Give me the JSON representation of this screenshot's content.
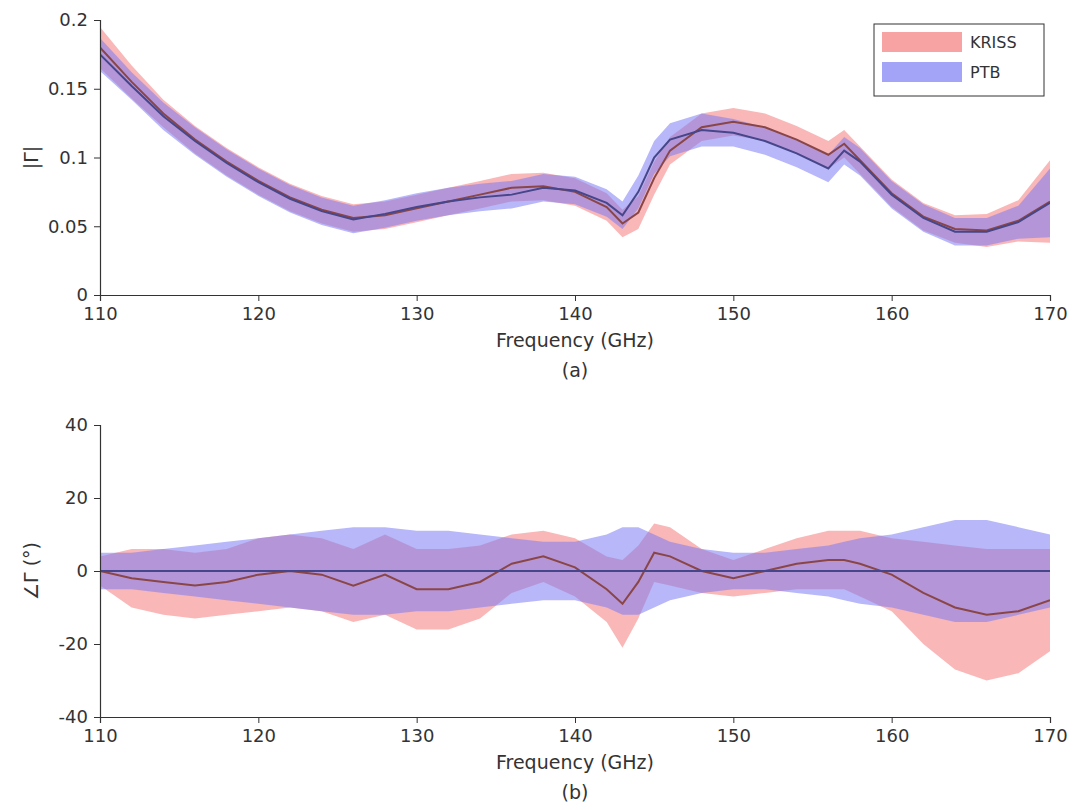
{
  "chart_data": [
    {
      "type": "line",
      "title": "(a)",
      "x_label": "Frequency (GHz)",
      "y_label": "|Γ|",
      "x": [
        110,
        112,
        114,
        116,
        118,
        120,
        122,
        124,
        126,
        128,
        130,
        132,
        134,
        136,
        138,
        140,
        142,
        143,
        144,
        145,
        146,
        148,
        150,
        152,
        154,
        156,
        157,
        158,
        160,
        162,
        164,
        166,
        168,
        170
      ],
      "xlim": [
        110,
        170
      ],
      "xticks": [
        110,
        120,
        130,
        140,
        150,
        160,
        170
      ],
      "ylim": [
        0,
        0.2
      ],
      "yticks": [
        0,
        0.05,
        0.1,
        0.15,
        0.2
      ],
      "legend": "upper right",
      "series": [
        {
          "name": "KRISS",
          "color": "#f47c7c",
          "values": [
            0.18,
            0.155,
            0.132,
            0.113,
            0.097,
            0.083,
            0.071,
            0.062,
            0.056,
            0.058,
            0.063,
            0.068,
            0.073,
            0.078,
            0.079,
            0.075,
            0.064,
            0.052,
            0.06,
            0.085,
            0.105,
            0.122,
            0.126,
            0.122,
            0.113,
            0.102,
            0.11,
            0.098,
            0.074,
            0.057,
            0.048,
            0.047,
            0.054,
            0.068
          ],
          "error": [
            0.015,
            0.012,
            0.01,
            0.01,
            0.01,
            0.01,
            0.01,
            0.01,
            0.01,
            0.01,
            0.01,
            0.01,
            0.01,
            0.01,
            0.01,
            0.01,
            0.01,
            0.01,
            0.012,
            0.012,
            0.01,
            0.01,
            0.01,
            0.01,
            0.01,
            0.01,
            0.01,
            0.01,
            0.01,
            0.01,
            0.01,
            0.012,
            0.015,
            0.03
          ]
        },
        {
          "name": "PTB",
          "color": "#7c7cf4",
          "values": [
            0.175,
            0.152,
            0.13,
            0.112,
            0.096,
            0.082,
            0.07,
            0.061,
            0.055,
            0.059,
            0.064,
            0.068,
            0.071,
            0.073,
            0.078,
            0.076,
            0.067,
            0.058,
            0.075,
            0.1,
            0.113,
            0.12,
            0.118,
            0.112,
            0.103,
            0.092,
            0.105,
            0.097,
            0.073,
            0.056,
            0.046,
            0.046,
            0.053,
            0.067
          ],
          "error": [
            0.012,
            0.01,
            0.01,
            0.01,
            0.01,
            0.01,
            0.01,
            0.01,
            0.01,
            0.01,
            0.01,
            0.01,
            0.01,
            0.01,
            0.01,
            0.01,
            0.01,
            0.01,
            0.012,
            0.012,
            0.012,
            0.012,
            0.01,
            0.01,
            0.01,
            0.01,
            0.01,
            0.01,
            0.01,
            0.01,
            0.01,
            0.01,
            0.012,
            0.025
          ]
        }
      ]
    },
    {
      "type": "line",
      "title": "(b)",
      "x_label": "Frequency (GHz)",
      "y_label": "∠Γ (°)",
      "x": [
        110,
        112,
        114,
        116,
        118,
        120,
        122,
        124,
        126,
        128,
        130,
        132,
        134,
        136,
        138,
        140,
        142,
        143,
        144,
        145,
        146,
        148,
        150,
        152,
        154,
        156,
        157,
        158,
        160,
        162,
        164,
        166,
        168,
        170
      ],
      "xlim": [
        110,
        170
      ],
      "xticks": [
        110,
        120,
        130,
        140,
        150,
        160,
        170
      ],
      "ylim": [
        -40,
        40
      ],
      "yticks": [
        -40,
        -20,
        0,
        20,
        40
      ],
      "series": [
        {
          "color": "#f47c7c",
          "values": [
            0,
            -2,
            -3,
            -4,
            -3,
            -1,
            0,
            -1,
            -4,
            -1,
            -5,
            -5,
            -3,
            2,
            4,
            1,
            -5,
            -9,
            -3,
            5,
            4,
            0,
            -2,
            0,
            2,
            3,
            3,
            2,
            -1,
            -6,
            -10,
            -12,
            -11,
            -8
          ],
          "error": [
            4,
            8,
            9,
            9,
            9,
            10,
            10,
            10,
            10,
            11,
            11,
            11,
            10,
            8,
            7,
            8,
            9,
            12,
            10,
            8,
            8,
            6,
            5,
            6,
            7,
            8,
            8,
            9,
            10,
            14,
            17,
            18,
            17,
            14
          ]
        },
        {
          "color": "#7c7cf4",
          "values": [
            0,
            0,
            0,
            0,
            0,
            0,
            0,
            0,
            0,
            0,
            0,
            0,
            0,
            0,
            0,
            0,
            0,
            0,
            0,
            0,
            0,
            0,
            0,
            0,
            0,
            0,
            0,
            0,
            0,
            0,
            0,
            0,
            0,
            0
          ],
          "error": [
            5,
            5,
            6,
            7,
            8,
            9,
            10,
            11,
            12,
            12,
            11,
            11,
            10,
            9,
            8,
            8,
            10,
            12,
            12,
            10,
            8,
            6,
            5,
            5,
            6,
            7,
            8,
            9,
            10,
            12,
            14,
            14,
            12,
            10
          ]
        }
      ]
    }
  ]
}
